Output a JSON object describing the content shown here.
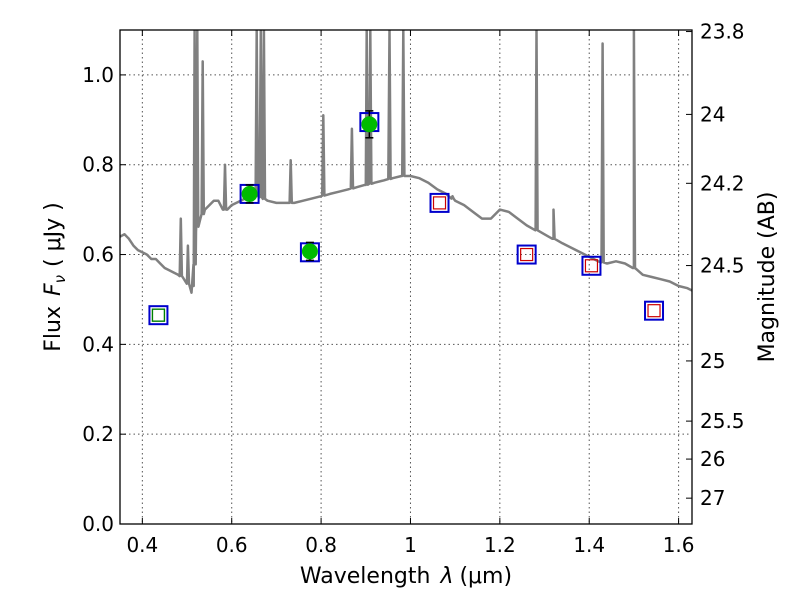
{
  "chart_data": {
    "type": "scatter",
    "xlabel": "Wavelength",
    "xlabel_symbol": "λ",
    "xlabel_unit": "(μm)",
    "ylabel": "Flux",
    "ylabel_symbol": "F",
    "ylabel_subscript": "ν",
    "ylabel_unit": "( μJy )",
    "y2label": "Magnitude (AB)",
    "xlim": [
      0.35,
      1.63
    ],
    "ylim": [
      0.0,
      1.1
    ],
    "grid": true,
    "x_ticks": [
      {
        "value": 0.4,
        "label": "0.4"
      },
      {
        "value": 0.6,
        "label": "0.6"
      },
      {
        "value": 0.8,
        "label": "0.8"
      },
      {
        "value": 1.0,
        "label": "1"
      },
      {
        "value": 1.2,
        "label": "1.2"
      },
      {
        "value": 1.4,
        "label": "1.4"
      },
      {
        "value": 1.6,
        "label": "1.6"
      }
    ],
    "y_ticks": [
      {
        "value": 0.0,
        "label": "0.0"
      },
      {
        "value": 0.2,
        "label": "0.2"
      },
      {
        "value": 0.4,
        "label": "0.4"
      },
      {
        "value": 0.6,
        "label": "0.6"
      },
      {
        "value": 0.8,
        "label": "0.8"
      },
      {
        "value": 1.0,
        "label": "1.0"
      }
    ],
    "magnitude_ticks": [
      {
        "value": 23.8,
        "label": "23.8"
      },
      {
        "value": 24.0,
        "label": "24"
      },
      {
        "value": 24.2,
        "label": "24.2"
      },
      {
        "value": 24.5,
        "label": "24.5"
      },
      {
        "value": 25.0,
        "label": "25"
      },
      {
        "value": 25.5,
        "label": "25.5"
      },
      {
        "value": 26.0,
        "label": "26"
      },
      {
        "value": 27.0,
        "label": "27"
      }
    ],
    "colors": {
      "template": "#808080",
      "model_box": "#0000cc",
      "observed": "#00bb00",
      "fill_inner": "#008000",
      "upper_inner": "#cc0000",
      "error_bar": "#000000"
    },
    "model_spectrum": [
      [
        0.35,
        0.64
      ],
      [
        0.36,
        0.645
      ],
      [
        0.37,
        0.635
      ],
      [
        0.38,
        0.62
      ],
      [
        0.39,
        0.61
      ],
      [
        0.4,
        0.605
      ],
      [
        0.41,
        0.6
      ],
      [
        0.42,
        0.59
      ],
      [
        0.43,
        0.59
      ],
      [
        0.44,
        0.58
      ],
      [
        0.45,
        0.57
      ],
      [
        0.46,
        0.565
      ],
      [
        0.47,
        0.56
      ],
      [
        0.48,
        0.555
      ],
      [
        0.49,
        0.55
      ],
      [
        0.5,
        0.54
      ],
      [
        0.51,
        0.515
      ],
      [
        0.515,
        0.53
      ],
      [
        0.52,
        0.65
      ],
      [
        0.525,
        0.67
      ],
      [
        0.53,
        0.68
      ],
      [
        0.54,
        0.7
      ],
      [
        0.55,
        0.71
      ],
      [
        0.56,
        0.72
      ],
      [
        0.57,
        0.72
      ],
      [
        0.58,
        0.7
      ],
      [
        0.59,
        0.7
      ],
      [
        0.6,
        0.71
      ],
      [
        0.62,
        0.72
      ],
      [
        0.64,
        0.73
      ],
      [
        0.66,
        0.73
      ],
      [
        0.68,
        0.72
      ],
      [
        0.7,
        0.715
      ],
      [
        0.72,
        0.715
      ],
      [
        0.74,
        0.715
      ],
      [
        0.76,
        0.72
      ],
      [
        0.78,
        0.725
      ],
      [
        0.8,
        0.73
      ],
      [
        0.82,
        0.735
      ],
      [
        0.84,
        0.74
      ],
      [
        0.86,
        0.745
      ],
      [
        0.88,
        0.75
      ],
      [
        0.9,
        0.755
      ],
      [
        0.92,
        0.76
      ],
      [
        0.94,
        0.765
      ],
      [
        0.96,
        0.77
      ],
      [
        0.98,
        0.775
      ],
      [
        1.0,
        0.775
      ],
      [
        1.02,
        0.77
      ],
      [
        1.04,
        0.76
      ],
      [
        1.06,
        0.745
      ],
      [
        1.08,
        0.735
      ],
      [
        1.1,
        0.72
      ],
      [
        1.12,
        0.71
      ],
      [
        1.14,
        0.695
      ],
      [
        1.16,
        0.68
      ],
      [
        1.18,
        0.68
      ],
      [
        1.2,
        0.7
      ],
      [
        1.22,
        0.695
      ],
      [
        1.24,
        0.68
      ],
      [
        1.26,
        0.665
      ],
      [
        1.28,
        0.655
      ],
      [
        1.3,
        0.645
      ],
      [
        1.32,
        0.635
      ],
      [
        1.34,
        0.625
      ],
      [
        1.36,
        0.615
      ],
      [
        1.38,
        0.605
      ],
      [
        1.4,
        0.595
      ],
      [
        1.42,
        0.585
      ],
      [
        1.44,
        0.58
      ],
      [
        1.46,
        0.585
      ],
      [
        1.48,
        0.58
      ],
      [
        1.5,
        0.57
      ],
      [
        1.52,
        0.555
      ],
      [
        1.54,
        0.55
      ],
      [
        1.56,
        0.545
      ],
      [
        1.58,
        0.54
      ],
      [
        1.6,
        0.53
      ],
      [
        1.62,
        0.525
      ],
      [
        1.63,
        0.52
      ]
    ],
    "emission_lines": [
      {
        "x": 0.486,
        "peak": 0.68
      },
      {
        "x": 0.502,
        "peak": 0.62
      },
      {
        "x": 0.517,
        "peak": 1.1
      },
      {
        "x": 0.523,
        "peak": 1.1
      },
      {
        "x": 0.535,
        "peak": 1.03
      },
      {
        "x": 0.585,
        "peak": 0.8
      },
      {
        "x": 0.656,
        "peak": 1.1
      },
      {
        "x": 0.665,
        "peak": 1.1
      },
      {
        "x": 0.672,
        "peak": 1.1
      },
      {
        "x": 0.732,
        "peak": 0.81
      },
      {
        "x": 0.805,
        "peak": 0.91
      },
      {
        "x": 0.869,
        "peak": 0.88
      },
      {
        "x": 0.902,
        "peak": 1.1
      },
      {
        "x": 0.91,
        "peak": 1.1
      },
      {
        "x": 0.953,
        "peak": 1.1
      },
      {
        "x": 0.984,
        "peak": 1.1
      },
      {
        "x": 1.094,
        "peak": 0.73
      },
      {
        "x": 1.282,
        "peak": 1.1
      },
      {
        "x": 1.32,
        "peak": 0.7
      },
      {
        "x": 1.43,
        "peak": 1.07
      },
      {
        "x": 1.5,
        "peak": 1.1
      }
    ],
    "model_photometry": [
      {
        "x": 0.436,
        "y": 0.465,
        "marker": "filled"
      },
      {
        "x": 0.64,
        "y": 0.735,
        "marker": "observed"
      },
      {
        "x": 0.775,
        "y": 0.605,
        "marker": "observed"
      },
      {
        "x": 0.908,
        "y": 0.895,
        "marker": "observed"
      },
      {
        "x": 1.065,
        "y": 0.715,
        "marker": "upper"
      },
      {
        "x": 1.26,
        "y": 0.6,
        "marker": "upper"
      },
      {
        "x": 1.405,
        "y": 0.575,
        "marker": "upper"
      },
      {
        "x": 1.545,
        "y": 0.475,
        "marker": "upper"
      }
    ],
    "observed_photometry": [
      {
        "x": 0.64,
        "y": 0.735,
        "err": 0.02
      },
      {
        "x": 0.775,
        "y": 0.607,
        "err": 0.02
      },
      {
        "x": 0.908,
        "y": 0.89,
        "err": 0.03
      }
    ]
  }
}
